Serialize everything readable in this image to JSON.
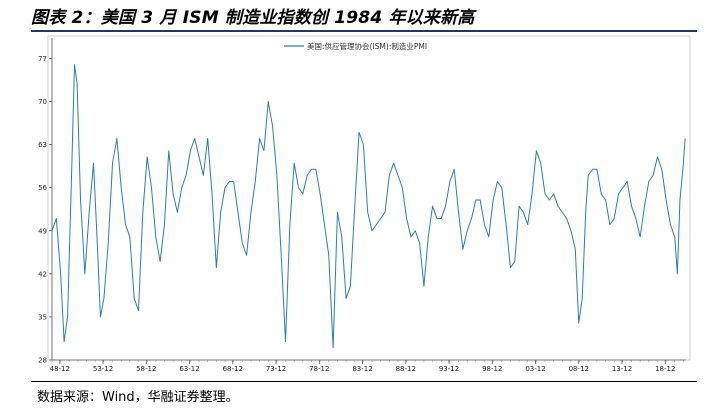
{
  "header": {
    "title": "图表 2：美国 3 月 ISM 制造业指数创 1984 年以来新高"
  },
  "footer": {
    "source": "数据来源：Wind，华融证券整理。"
  },
  "chart_data": {
    "type": "line",
    "title": "",
    "xlabel": "",
    "ylabel": "",
    "legend": [
      "美国:供应管理协会(ISM):制造业PMI"
    ],
    "legend_position": "top-center",
    "grid": false,
    "line_color": "#2e7db0",
    "x_ticks": [
      "48-12",
      "53-12",
      "58-12",
      "63-12",
      "68-12",
      "73-12",
      "78-12",
      "83-12",
      "88-12",
      "93-12",
      "98-12",
      "03-12",
      "08-12",
      "13-12",
      "18-12"
    ],
    "y_ticks": [
      28,
      35,
      42,
      49,
      56,
      63,
      70,
      77
    ],
    "ylim": [
      28,
      80
    ],
    "xlim": [
      1948.0,
      2021.3
    ],
    "series": [
      {
        "name": "美国:供应管理协会(ISM):制造业PMI",
        "x": [
          1948.0,
          1948.5,
          1949.0,
          1949.4,
          1949.8,
          1950.3,
          1950.6,
          1950.9,
          1951.3,
          1951.8,
          1952.3,
          1952.8,
          1953.2,
          1953.6,
          1954.0,
          1954.5,
          1955.0,
          1955.5,
          1956.0,
          1956.5,
          1957.0,
          1957.5,
          1958.0,
          1958.5,
          1959.0,
          1959.5,
          1960.0,
          1960.5,
          1961.0,
          1961.5,
          1962.0,
          1962.5,
          1963.0,
          1963.5,
          1964.0,
          1964.5,
          1965.0,
          1965.5,
          1966.0,
          1966.5,
          1967.0,
          1967.5,
          1968.0,
          1968.5,
          1969.0,
          1969.5,
          1970.0,
          1970.5,
          1971.0,
          1971.5,
          1972.0,
          1972.5,
          1973.0,
          1973.5,
          1974.0,
          1974.5,
          1975.0,
          1975.5,
          1976.0,
          1976.5,
          1977.0,
          1977.5,
          1978.0,
          1978.5,
          1979.0,
          1979.5,
          1980.0,
          1980.5,
          1981.0,
          1981.5,
          1982.0,
          1982.5,
          1983.0,
          1983.5,
          1984.0,
          1984.5,
          1985.0,
          1985.5,
          1986.0,
          1986.5,
          1987.0,
          1987.5,
          1988.0,
          1988.5,
          1989.0,
          1989.5,
          1990.0,
          1990.5,
          1991.0,
          1991.5,
          1992.0,
          1992.5,
          1993.0,
          1993.5,
          1994.0,
          1994.5,
          1995.0,
          1995.5,
          1996.0,
          1996.5,
          1997.0,
          1997.5,
          1998.0,
          1998.5,
          1999.0,
          1999.5,
          2000.0,
          2000.5,
          2001.0,
          2001.5,
          2002.0,
          2002.5,
          2003.0,
          2003.5,
          2004.0,
          2004.5,
          2005.0,
          2005.5,
          2006.0,
          2006.5,
          2007.0,
          2007.5,
          2008.0,
          2008.5,
          2008.9,
          2009.3,
          2009.7,
          2010.0,
          2010.5,
          2011.0,
          2011.5,
          2012.0,
          2012.5,
          2013.0,
          2013.5,
          2014.0,
          2014.5,
          2015.0,
          2015.5,
          2016.0,
          2016.5,
          2017.0,
          2017.5,
          2018.0,
          2018.5,
          2019.0,
          2019.5,
          2020.0,
          2020.3,
          2020.6,
          2021.0,
          2021.2
        ],
        "values": [
          49,
          51,
          42,
          31,
          35,
          60,
          76,
          73,
          54,
          42,
          52,
          60,
          48,
          35,
          38,
          47,
          60,
          64,
          56,
          50,
          48,
          38,
          36,
          52,
          61,
          56,
          48,
          44,
          50,
          62,
          55,
          52,
          56,
          58,
          62,
          64,
          61,
          58,
          64,
          55,
          43,
          52,
          56,
          57,
          57,
          52,
          47,
          45,
          52,
          57,
          64,
          62,
          70,
          66,
          58,
          45,
          31,
          50,
          60,
          56,
          55,
          58,
          59,
          59,
          55,
          50,
          45,
          30,
          52,
          48,
          38,
          40,
          53,
          65,
          63,
          52,
          49,
          50,
          51,
          52,
          58,
          60,
          58,
          56,
          51,
          48,
          49,
          47,
          40,
          48,
          53,
          51,
          51,
          53,
          57,
          59,
          52,
          46,
          49,
          51,
          54,
          54,
          50,
          48,
          54,
          57,
          56,
          50,
          43,
          44,
          53,
          52,
          50,
          55,
          62,
          60,
          55,
          54,
          55,
          53,
          52,
          51,
          49,
          46,
          34,
          38,
          52,
          58,
          59,
          59,
          55,
          54,
          50,
          51,
          55,
          56,
          57,
          53,
          51,
          48,
          53,
          57,
          58,
          61,
          59,
          54,
          50,
          48,
          42,
          54,
          60,
          64
        ]
      }
    ]
  }
}
